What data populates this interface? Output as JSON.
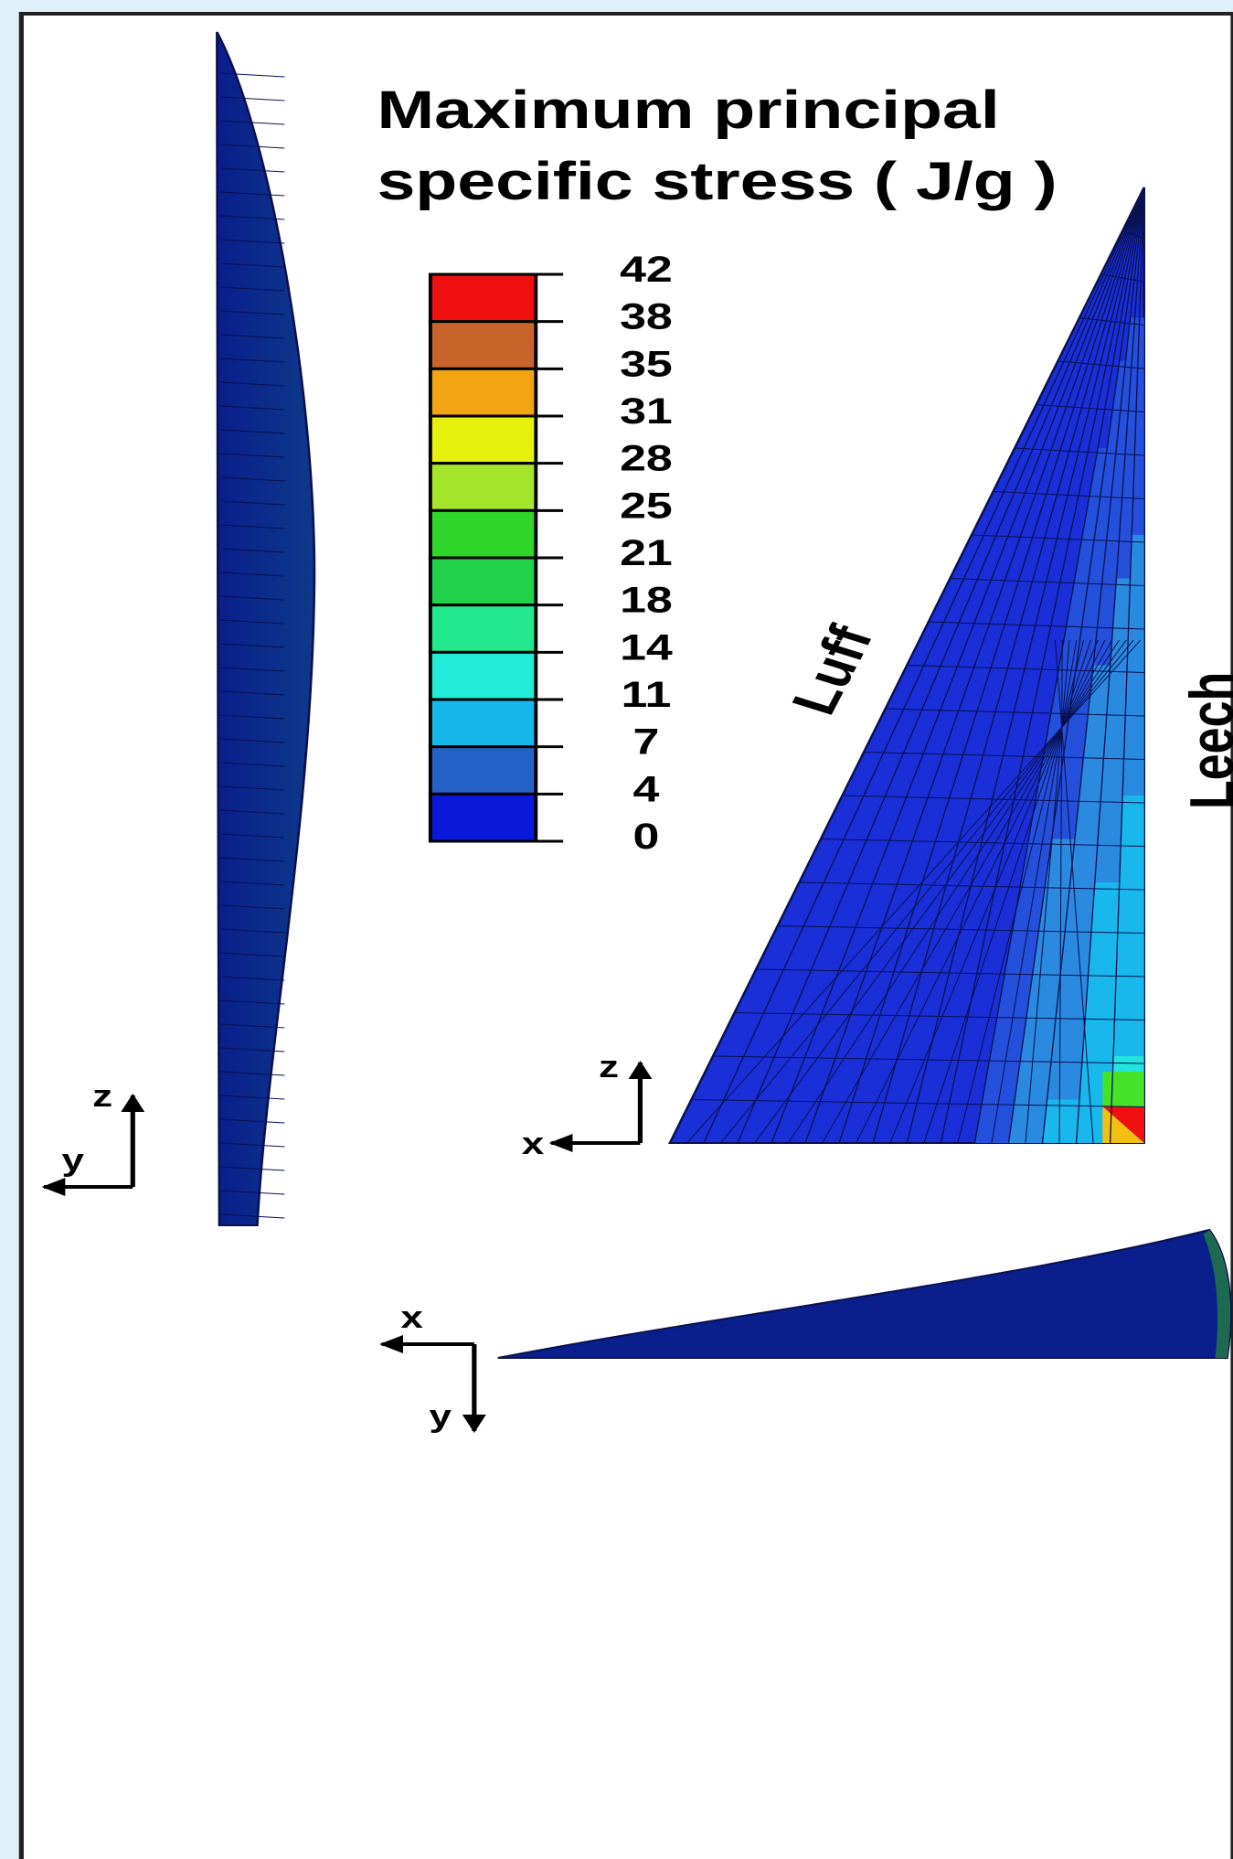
{
  "title": [
    "Maximum principal",
    "specific stress ( J/g )"
  ],
  "legend": {
    "levels": [
      42,
      38,
      35,
      31,
      28,
      25,
      21,
      18,
      14,
      11,
      7,
      4,
      0
    ]
  },
  "labels": {
    "luff": "Luff",
    "leech": "Leech"
  },
  "axes": {
    "side": {
      "vertical": "z",
      "horizontal": "y"
    },
    "front": {
      "vertical": "z",
      "horizontal": "x"
    },
    "top": {
      "horizontal": "x",
      "vertical": "y"
    }
  }
}
